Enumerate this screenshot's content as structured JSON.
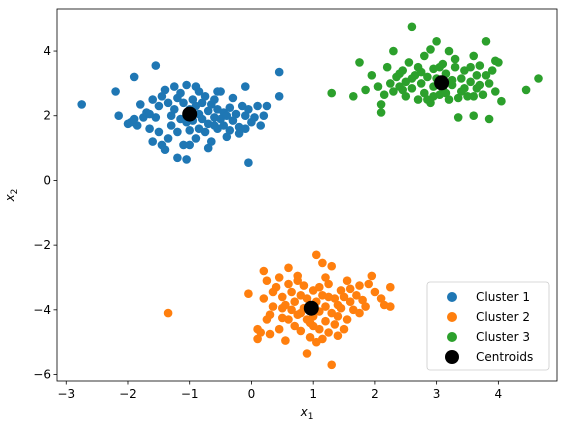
{
  "chart_data": {
    "type": "scatter",
    "title": "",
    "xlabel": "x",
    "xlabel_sub": "1",
    "ylabel": "x",
    "ylabel_sub": "2",
    "xlim": [
      -3.15,
      4.95
    ],
    "ylim": [
      -6.2,
      5.3
    ],
    "x_ticks": [
      -3,
      -2,
      -1,
      0,
      1,
      2,
      3,
      4
    ],
    "y_ticks": [
      -6,
      -4,
      -2,
      0,
      2,
      4
    ],
    "grid": false,
    "legend_position": "lower-right",
    "series": [
      {
        "name": "Cluster 1",
        "color": "#1f77b4",
        "points": [
          [
            -2.75,
            2.35
          ],
          [
            -2.2,
            2.75
          ],
          [
            -2.15,
            2.0
          ],
          [
            -2.0,
            1.75
          ],
          [
            -1.95,
            1.8
          ],
          [
            -1.9,
            3.2
          ],
          [
            -1.85,
            1.7
          ],
          [
            -1.8,
            2.35
          ],
          [
            -1.75,
            1.95
          ],
          [
            -1.7,
            2.1
          ],
          [
            -1.65,
            1.6
          ],
          [
            -1.6,
            1.2
          ],
          [
            -1.6,
            2.5
          ],
          [
            -1.55,
            3.55
          ],
          [
            -1.55,
            1.95
          ],
          [
            -1.5,
            2.3
          ],
          [
            -1.5,
            1.5
          ],
          [
            -1.45,
            2.6
          ],
          [
            -1.45,
            1.1
          ],
          [
            -1.4,
            0.95
          ],
          [
            -1.4,
            2.8
          ],
          [
            -1.35,
            2.4
          ],
          [
            -1.3,
            2.0
          ],
          [
            -1.3,
            1.7
          ],
          [
            -1.25,
            2.9
          ],
          [
            -1.25,
            2.2
          ],
          [
            -1.2,
            2.55
          ],
          [
            -1.2,
            0.7
          ],
          [
            -1.15,
            1.9
          ],
          [
            -1.15,
            2.7
          ],
          [
            -1.1,
            2.4
          ],
          [
            -1.1,
            1.1
          ],
          [
            -1.05,
            2.95
          ],
          [
            -1.05,
            0.65
          ],
          [
            -1.0,
            2.2
          ],
          [
            -1.0,
            1.55
          ],
          [
            -0.95,
            2.5
          ],
          [
            -0.95,
            1.85
          ],
          [
            -0.9,
            2.3
          ],
          [
            -0.9,
            1.3
          ],
          [
            -0.85,
            2.75
          ],
          [
            -0.85,
            2.05
          ],
          [
            -0.8,
            1.9
          ],
          [
            -0.8,
            2.4
          ],
          [
            -0.75,
            2.6
          ],
          [
            -0.75,
            1.5
          ],
          [
            -0.7,
            2.15
          ],
          [
            -0.7,
            1.75
          ],
          [
            -0.65,
            2.35
          ],
          [
            -0.65,
            1.2
          ],
          [
            -0.6,
            1.95
          ],
          [
            -0.6,
            2.5
          ],
          [
            -0.55,
            1.6
          ],
          [
            -0.55,
            2.2
          ],
          [
            -0.5,
            2.75
          ],
          [
            -0.5,
            1.9
          ],
          [
            -0.45,
            2.1
          ],
          [
            -0.45,
            1.7
          ],
          [
            -0.4,
            2.0
          ],
          [
            -0.35,
            2.25
          ],
          [
            -0.35,
            1.55
          ],
          [
            -0.3,
            1.85
          ],
          [
            -0.25,
            2.05
          ],
          [
            -0.2,
            1.65
          ],
          [
            -0.15,
            2.3
          ],
          [
            -0.1,
            2.0
          ],
          [
            -0.1,
            1.6
          ],
          [
            -0.05,
            2.2
          ],
          [
            -0.05,
            0.55
          ],
          [
            0.0,
            1.8
          ],
          [
            0.05,
            1.95
          ],
          [
            0.1,
            2.3
          ],
          [
            0.15,
            1.7
          ],
          [
            0.2,
            2.0
          ],
          [
            0.25,
            2.3
          ],
          [
            0.45,
            2.6
          ],
          [
            0.45,
            3.35
          ],
          [
            -0.1,
            2.9
          ],
          [
            -0.55,
            2.75
          ],
          [
            -0.3,
            2.55
          ],
          [
            -1.0,
            1.1
          ],
          [
            -0.85,
            1.6
          ],
          [
            -0.2,
            1.45
          ],
          [
            -0.7,
            1.0
          ],
          [
            -0.4,
            1.35
          ],
          [
            -1.35,
            1.3
          ],
          [
            -1.65,
            2.05
          ],
          [
            -1.9,
            1.9
          ],
          [
            -1.2,
            1.5
          ],
          [
            -0.9,
            2.9
          ],
          [
            -0.6,
            1.7
          ],
          [
            -1.05,
            1.8
          ]
        ]
      },
      {
        "name": "Cluster 2",
        "color": "#ff7f0e",
        "points": [
          [
            -1.35,
            -4.1
          ],
          [
            -0.05,
            -3.5
          ],
          [
            0.1,
            -4.6
          ],
          [
            0.1,
            -4.9
          ],
          [
            0.15,
            -4.7
          ],
          [
            0.2,
            -3.65
          ],
          [
            0.2,
            -2.8
          ],
          [
            0.25,
            -4.3
          ],
          [
            0.3,
            -4.15
          ],
          [
            0.3,
            -4.75
          ],
          [
            0.35,
            -3.9
          ],
          [
            0.4,
            -3.3
          ],
          [
            0.45,
            -4.6
          ],
          [
            0.45,
            -3.0
          ],
          [
            0.5,
            -3.6
          ],
          [
            0.5,
            -4.25
          ],
          [
            0.55,
            -3.85
          ],
          [
            0.6,
            -3.2
          ],
          [
            0.6,
            -2.7
          ],
          [
            0.65,
            -4.0
          ],
          [
            0.65,
            -3.45
          ],
          [
            0.7,
            -4.5
          ],
          [
            0.7,
            -3.75
          ],
          [
            0.75,
            -3.1
          ],
          [
            0.75,
            -4.15
          ],
          [
            0.8,
            -3.55
          ],
          [
            0.8,
            -4.65
          ],
          [
            0.85,
            -3.95
          ],
          [
            0.85,
            -3.25
          ],
          [
            0.9,
            -4.3
          ],
          [
            0.9,
            -3.65
          ],
          [
            0.9,
            -5.35
          ],
          [
            0.95,
            -4.85
          ],
          [
            0.95,
            -3.85
          ],
          [
            1.0,
            -4.2
          ],
          [
            1.0,
            -3.4
          ],
          [
            1.0,
            -4.5
          ],
          [
            1.05,
            -2.3
          ],
          [
            1.05,
            -3.75
          ],
          [
            1.05,
            -5.0
          ],
          [
            1.1,
            -4.05
          ],
          [
            1.1,
            -4.6
          ],
          [
            1.15,
            -3.55
          ],
          [
            1.15,
            -2.55
          ],
          [
            1.2,
            -4.35
          ],
          [
            1.2,
            -3.9
          ],
          [
            1.25,
            -3.2
          ],
          [
            1.25,
            -4.7
          ],
          [
            1.3,
            -4.1
          ],
          [
            1.3,
            -2.65
          ],
          [
            1.3,
            -5.7
          ],
          [
            1.35,
            -3.65
          ],
          [
            1.35,
            -4.45
          ],
          [
            1.4,
            -3.85
          ],
          [
            1.4,
            -4.2
          ],
          [
            1.45,
            -3.4
          ],
          [
            1.45,
            -3.95
          ],
          [
            1.5,
            -4.6
          ],
          [
            1.5,
            -3.6
          ],
          [
            1.55,
            -3.1
          ],
          [
            1.55,
            -4.3
          ],
          [
            1.6,
            -3.75
          ],
          [
            1.6,
            -3.35
          ],
          [
            1.65,
            -4.0
          ],
          [
            1.7,
            -3.55
          ],
          [
            1.75,
            -3.25
          ],
          [
            1.75,
            -4.1
          ],
          [
            1.8,
            -3.7
          ],
          [
            1.85,
            -3.9
          ],
          [
            1.9,
            -3.2
          ],
          [
            2.0,
            -3.45
          ],
          [
            2.1,
            -3.65
          ],
          [
            2.15,
            -3.85
          ],
          [
            2.25,
            -3.3
          ],
          [
            2.25,
            -3.9
          ],
          [
            1.95,
            -2.95
          ],
          [
            0.55,
            -4.95
          ],
          [
            0.75,
            -2.95
          ],
          [
            1.2,
            -3.0
          ],
          [
            0.35,
            -3.45
          ],
          [
            0.8,
            -4.1
          ],
          [
            1.15,
            -4.9
          ],
          [
            0.6,
            -4.3
          ],
          [
            1.0,
            -3.9
          ],
          [
            1.25,
            -3.6
          ],
          [
            1.4,
            -4.8
          ],
          [
            0.95,
            -4.4
          ],
          [
            1.1,
            -3.3
          ],
          [
            0.5,
            -3.95
          ],
          [
            0.25,
            -3.1
          ]
        ]
      },
      {
        "name": "Cluster 3",
        "color": "#2ca02c",
        "points": [
          [
            1.3,
            2.7
          ],
          [
            1.65,
            2.6
          ],
          [
            1.75,
            3.65
          ],
          [
            1.85,
            2.8
          ],
          [
            1.95,
            3.25
          ],
          [
            2.05,
            2.9
          ],
          [
            2.1,
            2.1
          ],
          [
            2.1,
            2.35
          ],
          [
            2.15,
            2.65
          ],
          [
            2.2,
            3.5
          ],
          [
            2.25,
            3.0
          ],
          [
            2.3,
            2.75
          ],
          [
            2.3,
            4.0
          ],
          [
            2.35,
            3.2
          ],
          [
            2.4,
            2.9
          ],
          [
            2.45,
            3.4
          ],
          [
            2.5,
            2.6
          ],
          [
            2.5,
            3.05
          ],
          [
            2.55,
            3.65
          ],
          [
            2.6,
            4.75
          ],
          [
            2.6,
            2.85
          ],
          [
            2.65,
            3.25
          ],
          [
            2.7,
            2.5
          ],
          [
            2.7,
            3.5
          ],
          [
            2.75,
            3.0
          ],
          [
            2.8,
            2.7
          ],
          [
            2.8,
            3.85
          ],
          [
            2.85,
            3.2
          ],
          [
            2.9,
            2.4
          ],
          [
            2.9,
            4.05
          ],
          [
            2.95,
            2.9
          ],
          [
            2.95,
            3.45
          ],
          [
            3.0,
            3.15
          ],
          [
            3.0,
            4.3
          ],
          [
            3.05,
            2.65
          ],
          [
            3.1,
            3.6
          ],
          [
            3.1,
            2.85
          ],
          [
            3.15,
            3.3
          ],
          [
            3.2,
            2.5
          ],
          [
            3.2,
            4.0
          ],
          [
            3.25,
            2.95
          ],
          [
            3.3,
            3.5
          ],
          [
            3.3,
            3.75
          ],
          [
            3.35,
            1.95
          ],
          [
            3.4,
            3.15
          ],
          [
            3.4,
            2.75
          ],
          [
            3.45,
            3.4
          ],
          [
            3.5,
            2.6
          ],
          [
            3.55,
            3.05
          ],
          [
            3.6,
            3.85
          ],
          [
            3.6,
            2.0
          ],
          [
            3.65,
            2.85
          ],
          [
            3.65,
            3.25
          ],
          [
            3.7,
            3.55
          ],
          [
            3.75,
            2.65
          ],
          [
            3.8,
            4.3
          ],
          [
            3.85,
            3.0
          ],
          [
            3.85,
            1.9
          ],
          [
            3.9,
            3.4
          ],
          [
            3.95,
            2.75
          ],
          [
            4.0,
            3.65
          ],
          [
            4.05,
            2.45
          ],
          [
            4.45,
            2.8
          ],
          [
            4.65,
            3.15
          ],
          [
            3.95,
            3.7
          ],
          [
            3.25,
            3.1
          ],
          [
            2.85,
            2.5
          ],
          [
            3.55,
            3.5
          ],
          [
            2.6,
            3.15
          ],
          [
            3.15,
            2.7
          ],
          [
            3.7,
            2.95
          ],
          [
            2.45,
            2.8
          ],
          [
            3.45,
            2.85
          ],
          [
            2.75,
            3.35
          ],
          [
            3.05,
            3.5
          ],
          [
            3.35,
            2.55
          ],
          [
            3.8,
            3.25
          ],
          [
            2.4,
            3.3
          ],
          [
            3.6,
            2.6
          ],
          [
            2.95,
            2.6
          ]
        ]
      }
    ],
    "centroids": {
      "name": "Centroids",
      "color": "#000000",
      "points": [
        [
          -1.0,
          2.05
        ],
        [
          0.97,
          -3.95
        ],
        [
          3.08,
          3.02
        ]
      ]
    }
  }
}
